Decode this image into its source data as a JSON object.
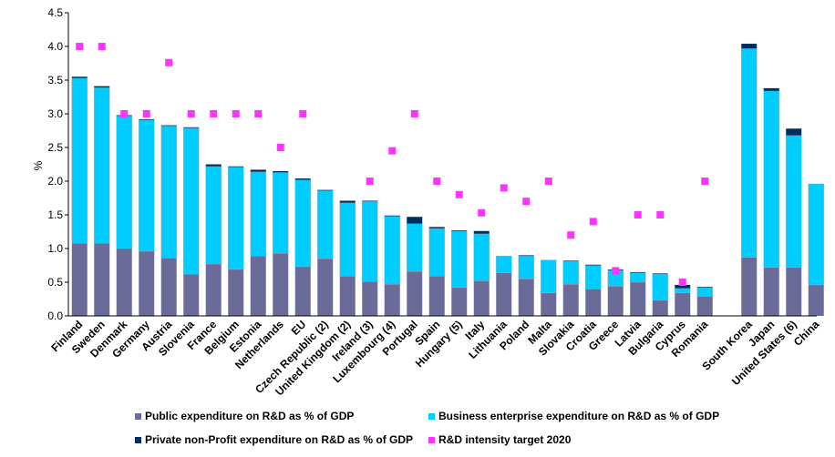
{
  "chart_data": {
    "type": "bar",
    "stacked": true,
    "ylabel": "%",
    "ylim": [
      0,
      4.5
    ],
    "yticks": [
      "0.0",
      "0.5",
      "1.0",
      "1.5",
      "2.0",
      "2.5",
      "3.0",
      "3.5",
      "4.0",
      "4.5"
    ],
    "grid": false,
    "categories": [
      "Finland",
      "Sweden",
      "Denmark",
      "Germany",
      "Austria",
      "Slovenia",
      "France",
      "Belgium",
      "Estonia",
      "Netherlands",
      "EU",
      "Czech Republic (2)",
      "United Kingdom (2)",
      "Ireland (3)",
      "Luxembourg (4)",
      "Portugal",
      "Spain",
      "Hungary (5)",
      "Italy",
      "Lithuania",
      "Poland",
      "Malta",
      "Slovakia",
      "Croatia",
      "Greece",
      "Latvia",
      "Bulgaria",
      "Cyprus",
      "Romania",
      "South Korea",
      "Japan",
      "United States (6)",
      "China"
    ],
    "series": [
      {
        "name": "Public expenditure on R&D as % of GDP",
        "color": "#6b6b9a",
        "values": [
          1.08,
          1.08,
          1.0,
          0.96,
          0.86,
          0.62,
          0.77,
          0.69,
          0.89,
          0.93,
          0.73,
          0.85,
          0.59,
          0.51,
          0.47,
          0.66,
          0.59,
          0.42,
          0.52,
          0.64,
          0.55,
          0.34,
          0.47,
          0.4,
          0.44,
          0.5,
          0.23,
          0.34,
          0.29,
          0.87,
          0.72,
          0.72,
          0.46
        ]
      },
      {
        "name": "Business enterprise expenditure on R&D as % of GDP",
        "color": "#00ccff",
        "values": [
          2.45,
          2.31,
          1.97,
          1.95,
          1.96,
          2.17,
          1.45,
          1.52,
          1.25,
          1.2,
          1.29,
          1.01,
          1.09,
          1.19,
          1.01,
          0.71,
          0.71,
          0.84,
          0.7,
          0.25,
          0.34,
          0.49,
          0.34,
          0.35,
          0.24,
          0.14,
          0.39,
          0.07,
          0.13,
          3.1,
          2.62,
          1.96,
          1.5
        ]
      },
      {
        "name": "Private non-Profit expenditure on R&D as % of GDP",
        "color": "#002d5e",
        "values": [
          0.02,
          0.02,
          0.01,
          0.01,
          0.01,
          0.01,
          0.03,
          0.01,
          0.03,
          0.02,
          0.02,
          0.01,
          0.03,
          0.01,
          0.01,
          0.1,
          0.02,
          0.01,
          0.04,
          0.0,
          0.01,
          0.0,
          0.01,
          0.01,
          0.01,
          0.01,
          0.01,
          0.05,
          0.01,
          0.07,
          0.04,
          0.1,
          0.0
        ]
      }
    ],
    "target": {
      "name": "R&D intensity target 2020",
      "color": "#ff33ff",
      "values": [
        4.0,
        4.0,
        3.0,
        3.0,
        3.76,
        3.0,
        3.0,
        3.0,
        3.0,
        2.5,
        3.0,
        null,
        null,
        2.0,
        2.45,
        3.0,
        2.0,
        1.8,
        1.53,
        1.9,
        1.7,
        2.0,
        1.2,
        1.4,
        0.67,
        1.5,
        1.5,
        0.5,
        2.0,
        null,
        null,
        null,
        null
      ]
    },
    "legend_position": "bottom"
  }
}
